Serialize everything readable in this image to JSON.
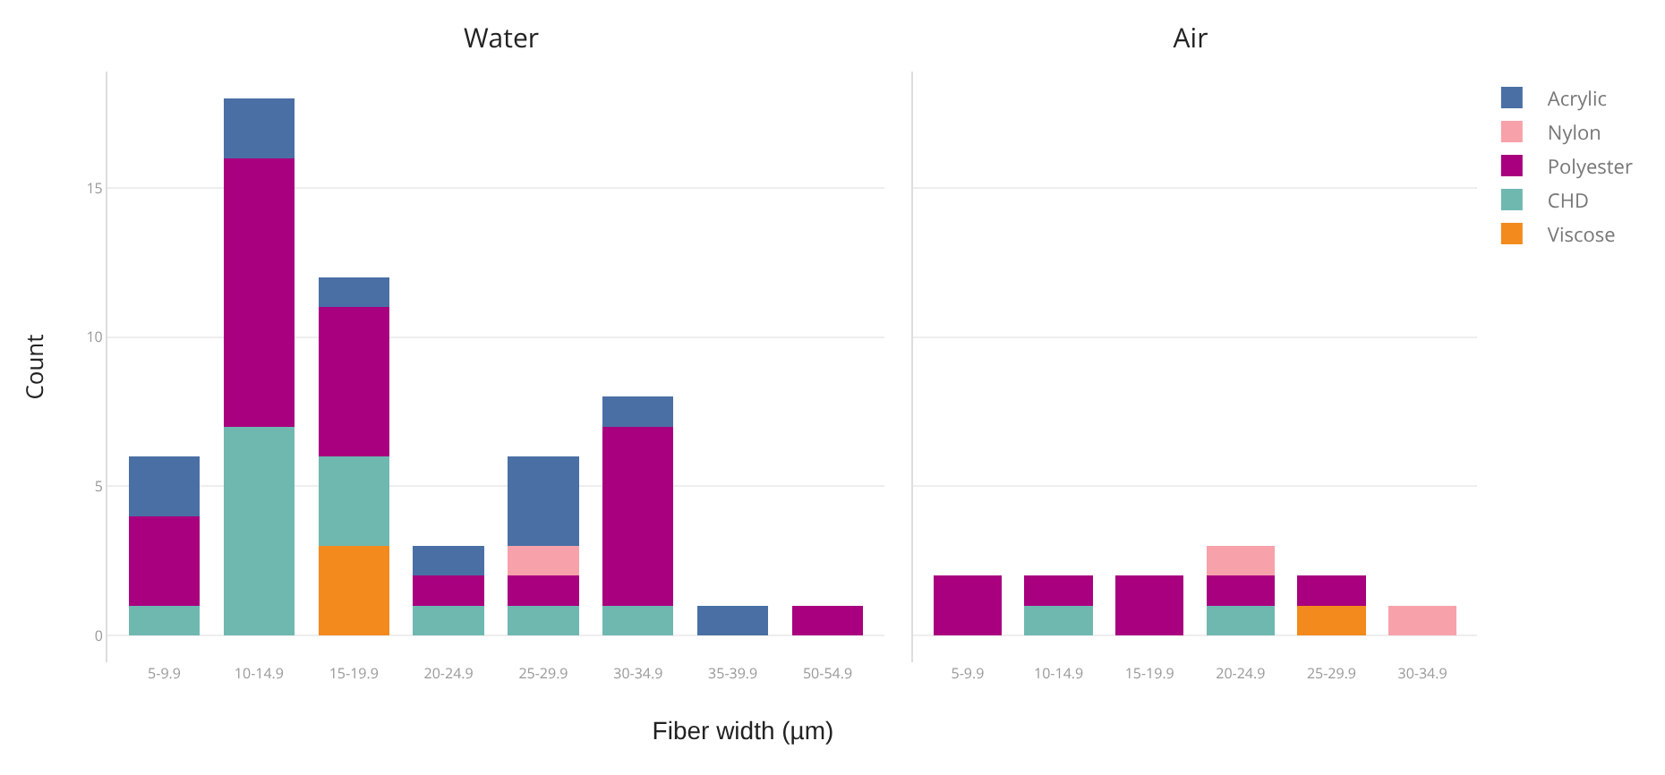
{
  "chart_data": [
    {
      "type": "bar",
      "title": "Water",
      "ylabel": "Count",
      "xlabel": "Fiber width (µm)",
      "categories": [
        "5-9.9",
        "10-14.9",
        "15-19.9",
        "20-24.9",
        "25-29.9",
        "30-34.9",
        "35-39.9",
        "50-54.9"
      ],
      "stacked": true,
      "ylim": [
        -0.9,
        18.9
      ],
      "yticks": [
        0,
        5,
        10,
        15
      ],
      "grid": "y",
      "legend": "right",
      "series": [
        {
          "name": "Viscose",
          "color": "#f28a1e",
          "values": [
            null,
            null,
            3,
            null,
            null,
            null,
            null,
            null
          ]
        },
        {
          "name": "CHD",
          "color": "#6fb8b0",
          "values": [
            1,
            7,
            3,
            1,
            1,
            1,
            null,
            null
          ]
        },
        {
          "name": "Polyester",
          "color": "#a8007e",
          "values": [
            3,
            9,
            5,
            1,
            1,
            6,
            null,
            1
          ]
        },
        {
          "name": "Nylon",
          "color": "#f7a1aa",
          "values": [
            null,
            null,
            null,
            null,
            1,
            null,
            null,
            null
          ]
        },
        {
          "name": "Acrylic",
          "color": "#4a6fa5",
          "values": [
            2,
            2,
            1,
            1,
            3,
            1,
            1,
            null
          ]
        }
      ]
    },
    {
      "type": "bar",
      "title": "Air",
      "categories": [
        "5-9.9",
        "10-14.9",
        "15-19.9",
        "20-24.9",
        "25-29.9",
        "30-34.9"
      ],
      "stacked": true,
      "ylim": [
        -0.9,
        18.9
      ],
      "yticks": [
        0,
        5,
        10,
        15
      ],
      "grid": "y",
      "tick_labels": "x",
      "series": [
        {
          "color": "#f28a1e",
          "values": [
            null,
            null,
            null,
            null,
            1,
            null
          ]
        },
        {
          "color": "#6fb8b0",
          "values": [
            null,
            1,
            null,
            1,
            null,
            null
          ]
        },
        {
          "color": "#a8007e",
          "values": [
            2,
            1,
            2,
            1,
            1,
            null
          ]
        },
        {
          "color": "#f7a1aa",
          "values": [
            null,
            null,
            null,
            1,
            null,
            1
          ]
        }
      ]
    }
  ]
}
